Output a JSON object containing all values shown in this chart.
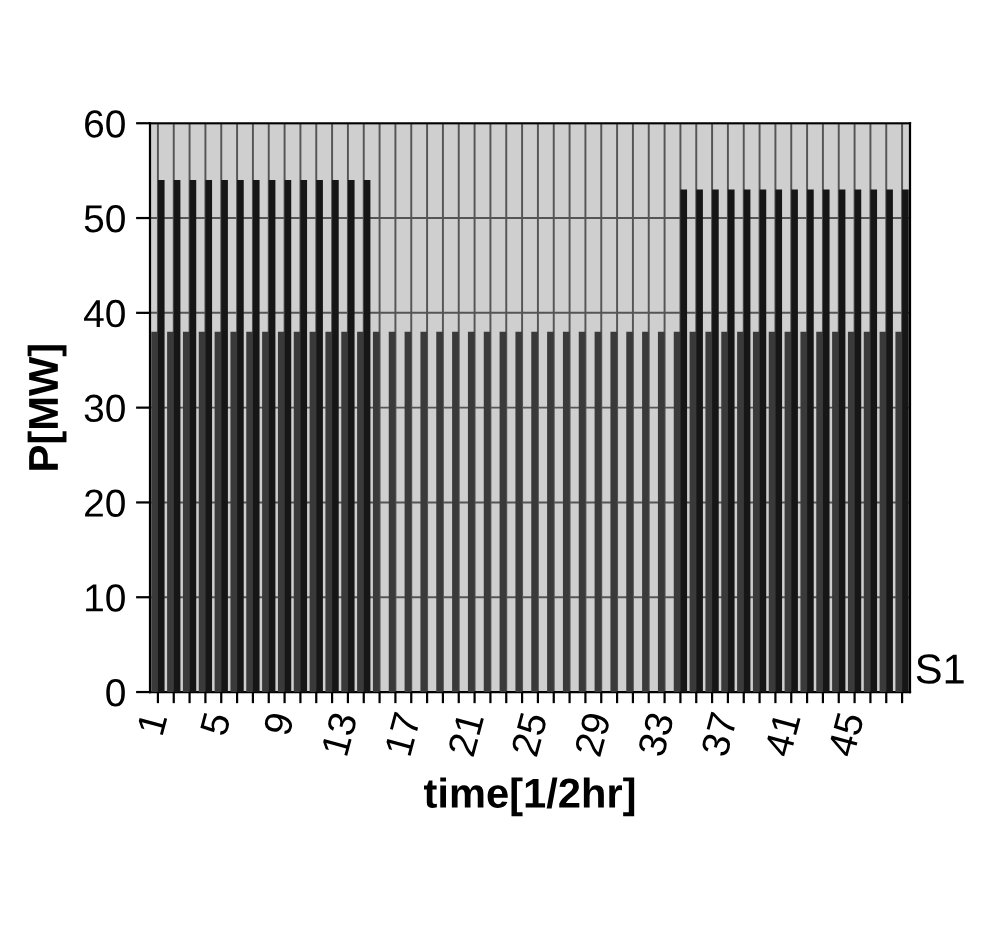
{
  "chart_data": {
    "type": "bar",
    "xlabel": "time[1/2hr]",
    "ylabel": "P[MW]",
    "categories": [
      "1",
      null,
      null,
      null,
      "5",
      null,
      null,
      null,
      "9",
      null,
      null,
      null,
      "13",
      null,
      null,
      null,
      "17",
      null,
      null,
      null,
      "21",
      null,
      null,
      null,
      "25",
      null,
      null,
      null,
      "29",
      null,
      null,
      null,
      "33",
      null,
      null,
      null,
      "37",
      null,
      null,
      null,
      "41",
      null,
      null,
      null,
      "45",
      null,
      null,
      null
    ],
    "series": [
      {
        "name": "S1",
        "color": "#3a3a3a",
        "values": [
          38,
          38,
          38,
          38,
          38,
          38,
          38,
          38,
          38,
          38,
          38,
          38,
          38,
          38,
          38,
          38,
          38,
          38,
          38,
          38,
          38,
          38,
          38,
          38,
          38,
          38,
          38,
          38,
          38,
          38,
          38,
          38,
          38,
          38,
          38,
          38,
          38,
          38,
          38,
          38,
          38,
          38,
          38,
          38,
          38,
          38,
          38,
          38
        ]
      },
      {
        "color": "#161616",
        "values": [
          54,
          54,
          54,
          54,
          54,
          54,
          54,
          54,
          54,
          54,
          54,
          54,
          54,
          54,
          null,
          null,
          null,
          null,
          null,
          null,
          null,
          null,
          null,
          null,
          null,
          null,
          null,
          null,
          null,
          null,
          null,
          null,
          null,
          53,
          53,
          53,
          53,
          53,
          53,
          53,
          53,
          53,
          53,
          53,
          53,
          53,
          53,
          53
        ]
      }
    ],
    "ylim": [
      0,
      60
    ],
    "yticks": [
      0,
      10,
      20,
      30,
      40,
      50,
      60
    ],
    "grid": true
  }
}
